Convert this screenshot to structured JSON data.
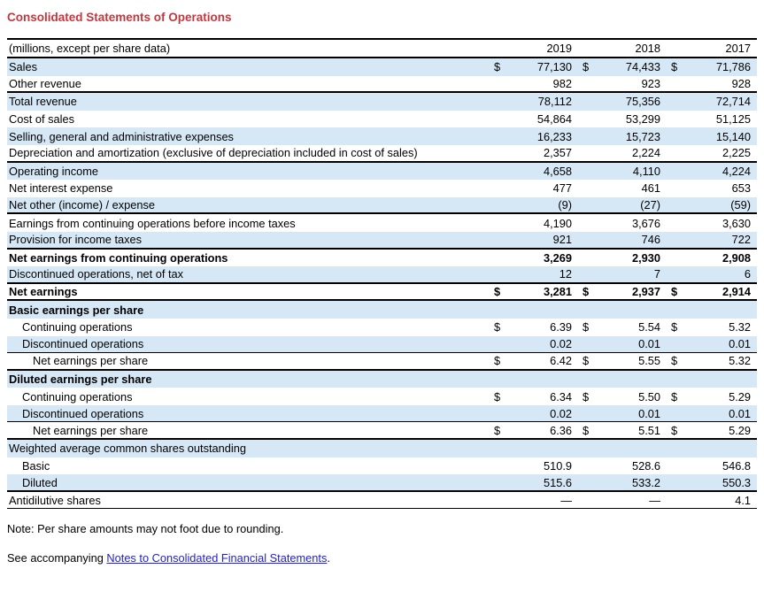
{
  "page": {
    "title": "Consolidated Statements of Operations"
  },
  "colors": {
    "row_shade": "#d6e8f6",
    "title_red": "#c4373d",
    "link_blue": "#2222cc",
    "rule_black": "#000000"
  },
  "table": {
    "header": {
      "label": "(millions, except per share data)",
      "years": [
        "2019",
        "2018",
        "2017"
      ]
    },
    "rows": [
      {
        "label": "Sales",
        "dollar": true,
        "values": [
          "77,130",
          "74,433",
          "71,786"
        ],
        "shade": true,
        "bold": false,
        "indent": 0,
        "line_below": "none"
      },
      {
        "label": "Other revenue",
        "dollar": false,
        "values": [
          "982",
          "923",
          "928"
        ],
        "shade": false,
        "bold": false,
        "indent": 0,
        "line_below": "thick"
      },
      {
        "label": "Total revenue",
        "dollar": false,
        "values": [
          "78,112",
          "75,356",
          "72,714"
        ],
        "shade": true,
        "bold": false,
        "indent": 0,
        "line_below": "none"
      },
      {
        "label": "Cost of sales",
        "dollar": false,
        "values": [
          "54,864",
          "53,299",
          "51,125"
        ],
        "shade": false,
        "bold": false,
        "indent": 0,
        "line_below": "none"
      },
      {
        "label": "Selling, general and administrative expenses",
        "dollar": false,
        "values": [
          "16,233",
          "15,723",
          "15,140"
        ],
        "shade": true,
        "bold": false,
        "indent": 0,
        "line_below": "none"
      },
      {
        "label": "Depreciation and amortization (exclusive of depreciation included in cost of sales)",
        "dollar": false,
        "values": [
          "2,357",
          "2,224",
          "2,225"
        ],
        "shade": false,
        "bold": false,
        "indent": 0,
        "line_below": "thick"
      },
      {
        "label": "Operating income",
        "dollar": false,
        "values": [
          "4,658",
          "4,110",
          "4,224"
        ],
        "shade": true,
        "bold": false,
        "indent": 0,
        "line_below": "none"
      },
      {
        "label": "Net interest expense",
        "dollar": false,
        "values": [
          "477",
          "461",
          "653"
        ],
        "shade": false,
        "bold": false,
        "indent": 0,
        "line_below": "none"
      },
      {
        "label": "Net other (income) / expense",
        "dollar": false,
        "values": [
          "(9)",
          "(27)",
          "(59)"
        ],
        "shade": true,
        "bold": false,
        "indent": 0,
        "line_below": "thick"
      },
      {
        "label": "Earnings from continuing operations before income taxes",
        "dollar": false,
        "values": [
          "4,190",
          "3,676",
          "3,630"
        ],
        "shade": false,
        "bold": false,
        "indent": 0,
        "line_below": "none"
      },
      {
        "label": "Provision for income taxes",
        "dollar": false,
        "values": [
          "921",
          "746",
          "722"
        ],
        "shade": true,
        "bold": false,
        "indent": 0,
        "line_below": "thick"
      },
      {
        "label": "Net earnings from continuing operations",
        "dollar": false,
        "values": [
          "3,269",
          "2,930",
          "2,908"
        ],
        "shade": false,
        "bold": true,
        "indent": 0,
        "line_below": "none"
      },
      {
        "label": "Discontinued operations, net of tax",
        "dollar": false,
        "values": [
          "12",
          "7",
          "6"
        ],
        "shade": true,
        "bold": false,
        "indent": 0,
        "line_below": "thick"
      },
      {
        "label": "Net earnings",
        "dollar": true,
        "values": [
          "3,281",
          "2,937",
          "2,914"
        ],
        "shade": false,
        "bold": true,
        "indent": 0,
        "line_below": "thick"
      },
      {
        "label": "Basic earnings per share",
        "dollar": false,
        "values": [
          "",
          "",
          ""
        ],
        "shade": true,
        "bold": true,
        "indent": 0,
        "line_below": "none"
      },
      {
        "label": "Continuing operations",
        "dollar": true,
        "values": [
          "6.39",
          "5.54",
          "5.32"
        ],
        "shade": false,
        "bold": false,
        "indent": 1,
        "line_below": "none"
      },
      {
        "label": "Discontinued operations",
        "dollar": false,
        "values": [
          "0.02",
          "0.01",
          "0.01"
        ],
        "shade": true,
        "bold": false,
        "indent": 1,
        "line_below": "medium"
      },
      {
        "label": "Net earnings per share",
        "dollar": true,
        "values": [
          "6.42",
          "5.55",
          "5.32"
        ],
        "shade": false,
        "bold": false,
        "indent": 2,
        "line_below": "thick"
      },
      {
        "label": "Diluted earnings per share",
        "dollar": false,
        "values": [
          "",
          "",
          ""
        ],
        "shade": true,
        "bold": true,
        "indent": 0,
        "line_below": "none"
      },
      {
        "label": "Continuing operations",
        "dollar": true,
        "values": [
          "6.34",
          "5.50",
          "5.29"
        ],
        "shade": false,
        "bold": false,
        "indent": 1,
        "line_below": "none"
      },
      {
        "label": "Discontinued operations",
        "dollar": false,
        "values": [
          "0.02",
          "0.01",
          "0.01"
        ],
        "shade": true,
        "bold": false,
        "indent": 1,
        "line_below": "medium"
      },
      {
        "label": "Net earnings per share",
        "dollar": true,
        "values": [
          "6.36",
          "5.51",
          "5.29"
        ],
        "shade": false,
        "bold": false,
        "indent": 2,
        "line_below": "thick"
      },
      {
        "label": "Weighted average common shares outstanding",
        "dollar": false,
        "values": [
          "",
          "",
          ""
        ],
        "shade": true,
        "bold": false,
        "indent": 0,
        "line_below": "none"
      },
      {
        "label": "Basic",
        "dollar": false,
        "values": [
          "510.9",
          "528.6",
          "546.8"
        ],
        "shade": false,
        "bold": false,
        "indent": 1,
        "line_below": "none"
      },
      {
        "label": "Diluted",
        "dollar": false,
        "values": [
          "515.6",
          "533.2",
          "550.3"
        ],
        "shade": true,
        "bold": false,
        "indent": 1,
        "line_below": "thick"
      },
      {
        "label": "Antidilutive shares",
        "dollar": false,
        "values": [
          "—",
          "—",
          "4.1"
        ],
        "shade": false,
        "bold": false,
        "indent": 0,
        "line_below": "medium"
      }
    ]
  },
  "notes": {
    "rounding": "Note: Per share amounts may not foot due to rounding.",
    "accompanying_prefix": "See accompanying ",
    "accompanying_link": "Notes to Consolidated Financial Statements",
    "accompanying_suffix": "."
  }
}
